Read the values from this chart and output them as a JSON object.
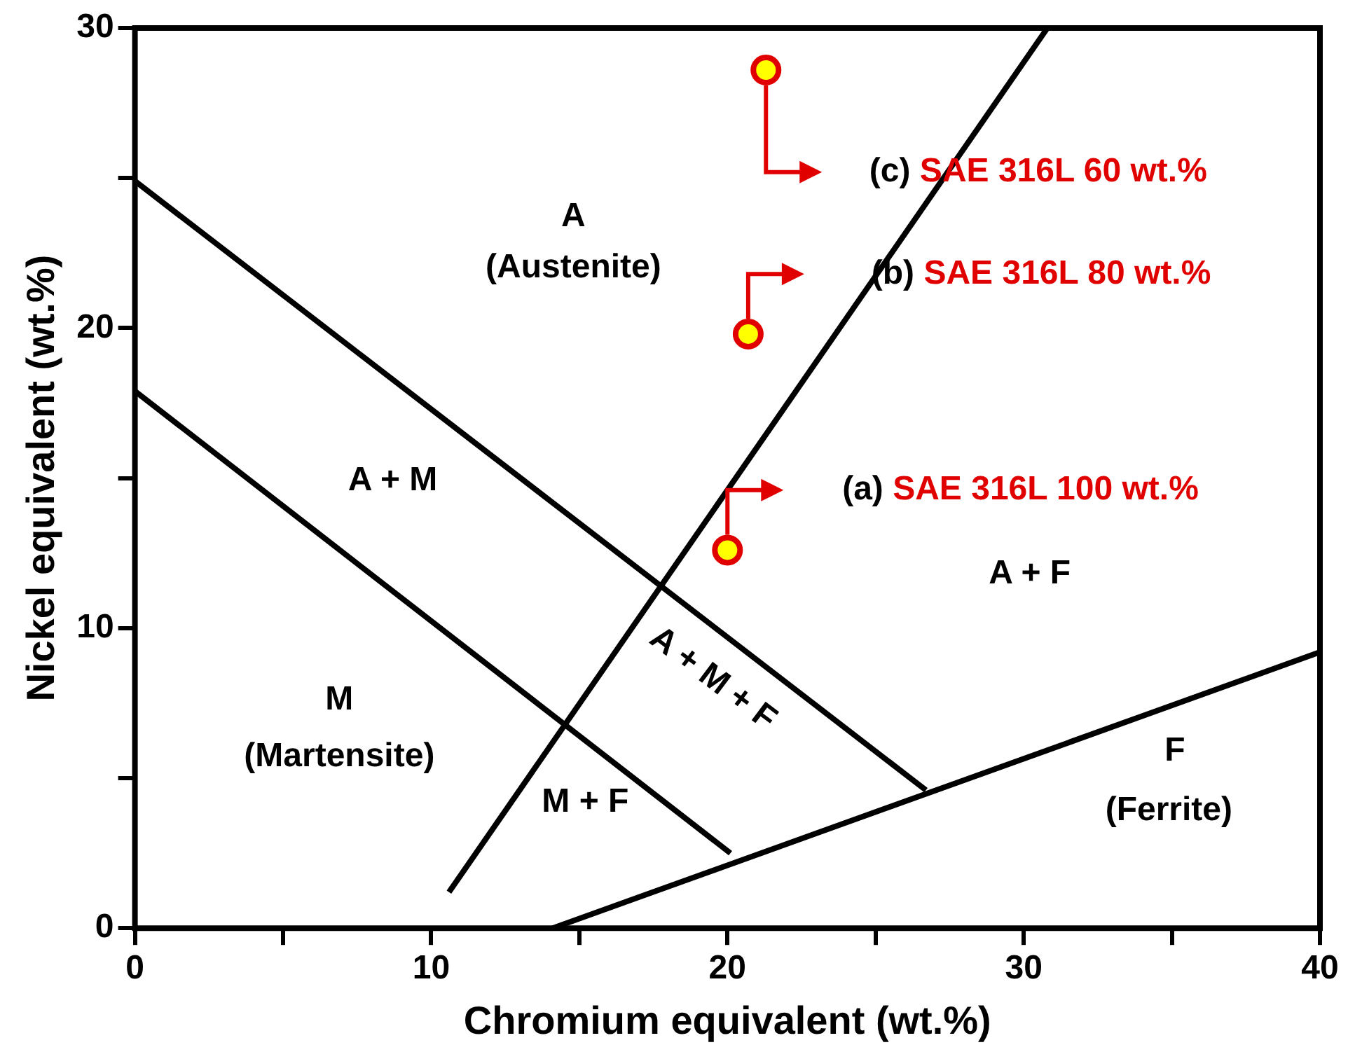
{
  "chart_data": {
    "type": "line",
    "xlabel": "Chromium equivalent (wt.%)",
    "ylabel": "Nickel equivalent (wt.%)",
    "xlim": [
      0,
      40
    ],
    "xticks": [
      0,
      {
        "value": 5,
        "label": null
      },
      10,
      {
        "value": 15,
        "label": null
      },
      20,
      {
        "value": 25,
        "label": null
      },
      30,
      {
        "value": 35,
        "label": null
      },
      40
    ],
    "ylim": [
      0,
      30
    ],
    "yticks": [
      0,
      {
        "value": 5,
        "label": null
      },
      10,
      {
        "value": 15,
        "label": null
      },
      20,
      {
        "value": 25,
        "label": null
      },
      30
    ],
    "grid": false,
    "legend": false,
    "line_style": "solid",
    "series": [
      {
        "color": "#000000",
        "x": [
          10.6,
          30.8
        ],
        "values": [
          1.2,
          30
        ]
      },
      {
        "color": "#000000",
        "x": [
          0,
          26.7
        ],
        "values": [
          24.9,
          4.6
        ]
      },
      {
        "color": "#000000",
        "x": [
          0,
          20.1
        ],
        "values": [
          17.9,
          2.5
        ]
      },
      {
        "color": "#000000",
        "x": [
          14.1,
          40
        ],
        "values": [
          0,
          9.2
        ]
      },
      {
        "type": "scatter",
        "marker": "circle",
        "color": "#ffff00",
        "x": [
          20,
          20.7,
          21.3
        ],
        "values": [
          12.6,
          19.8,
          28.6
        ]
      }
    ],
    "annotations": [
      "(a) SAE 316L 100 wt.%",
      "(b) SAE 316L 80 wt.%",
      "(c) SAE 316L 60 wt.%",
      "A",
      "(Austenite)",
      "A + M",
      "M",
      "(Martensite)",
      "M + F",
      "A + M + F",
      "A + F",
      "F",
      "(Ferrite)"
    ]
  }
}
